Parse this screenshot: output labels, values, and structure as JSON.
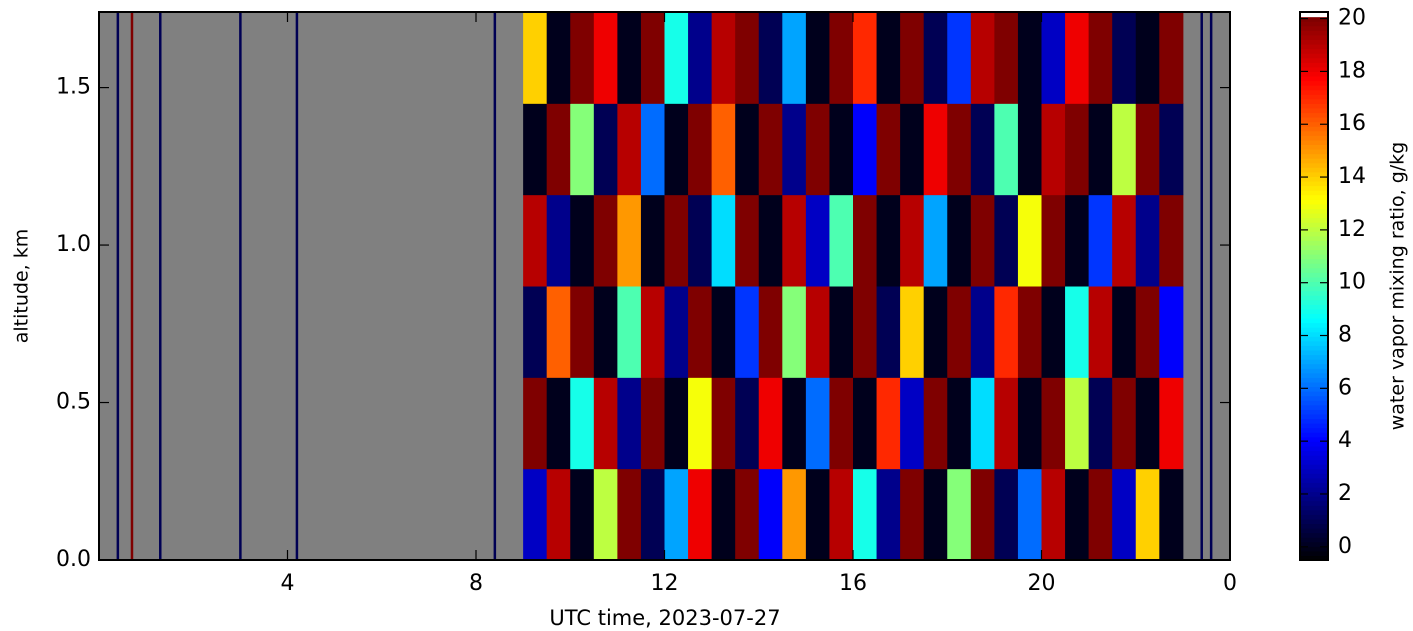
{
  "chart_data": {
    "type": "heatmap",
    "xlabel": "UTC time,  2023-07-27",
    "ylabel": "altitude, km",
    "xlim": [
      0,
      24
    ],
    "xticks": [
      4,
      8,
      12,
      16,
      20,
      {
        "value": 24,
        "label": "0"
      }
    ],
    "ylim": [
      0,
      1.74
    ],
    "yticks": [
      {
        "value": 0,
        "label": "0.0"
      },
      0.5,
      {
        "value": 1,
        "label": "1.0"
      },
      1.5
    ],
    "nodata_color": "#808080",
    "x_edges": [
      9.0,
      9.5,
      10.0,
      10.5,
      11.0,
      11.5,
      12.0,
      12.5,
      13.0,
      13.5,
      14.0,
      14.5,
      15.0,
      15.5,
      16.0,
      16.5,
      17.0,
      17.5,
      18.0,
      18.5,
      19.0,
      19.5,
      20.0,
      20.5,
      21.0,
      21.5,
      22.0,
      22.5,
      23.0
    ],
    "y_edges": [
      0,
      0.29,
      0.58,
      0.87,
      1.16,
      1.45,
      1.74
    ],
    "z": [
      [
        3,
        19,
        0,
        12,
        20,
        1,
        7,
        18,
        0,
        20,
        4,
        15,
        0,
        19,
        9,
        2,
        20,
        0,
        11,
        20,
        1,
        6,
        19,
        0,
        20,
        3,
        14,
        0
      ],
      [
        20,
        0,
        9,
        19,
        2,
        20,
        0,
        13,
        20,
        1,
        18,
        0,
        6,
        20,
        0,
        17,
        3,
        20,
        0,
        8,
        19,
        0,
        20,
        12,
        1,
        20,
        0,
        18
      ],
      [
        1,
        16,
        20,
        0,
        10,
        19,
        2,
        20,
        0,
        5,
        20,
        11,
        19,
        0,
        20,
        1,
        14,
        0,
        20,
        2,
        17,
        20,
        0,
        9,
        19,
        0,
        20,
        4
      ],
      [
        19,
        2,
        0,
        20,
        15,
        0,
        20,
        1,
        8,
        20,
        0,
        19,
        3,
        10,
        20,
        0,
        19,
        7,
        0,
        20,
        1,
        13,
        20,
        0,
        5,
        19,
        2,
        20
      ],
      [
        0,
        20,
        11,
        1,
        19,
        6,
        0,
        20,
        16,
        0,
        20,
        2,
        20,
        0,
        4,
        20,
        0,
        18,
        20,
        1,
        10,
        0,
        19,
        20,
        0,
        12,
        20,
        1
      ],
      [
        14,
        0,
        20,
        18,
        0,
        20,
        9,
        2,
        19,
        20,
        1,
        7,
        0,
        20,
        17,
        0,
        20,
        1,
        5,
        19,
        20,
        0,
        3,
        18,
        20,
        1,
        0,
        20
      ]
    ],
    "lines": {
      "x": [
        0.4,
        0.7,
        1.3,
        3.0,
        4.2,
        8.4,
        23.4,
        23.6
      ],
      "values": [
        1,
        20,
        1,
        1,
        1,
        1,
        1,
        1
      ]
    },
    "colorbar": {
      "label": "water vapor mixing ratio, g/kg",
      "clim": [
        -0.5,
        20.25
      ],
      "ticks": [
        0,
        2,
        4,
        6,
        8,
        10,
        12,
        14,
        16,
        18,
        20
      ],
      "colormap": [
        "#000000",
        "#00007f",
        "#0000ff",
        "#007fff",
        "#00ffff",
        "#7fff7f",
        "#ffff00",
        "#ff7f00",
        "#ff0000",
        "#7f0000"
      ],
      "over_color": "#ffffff"
    }
  }
}
